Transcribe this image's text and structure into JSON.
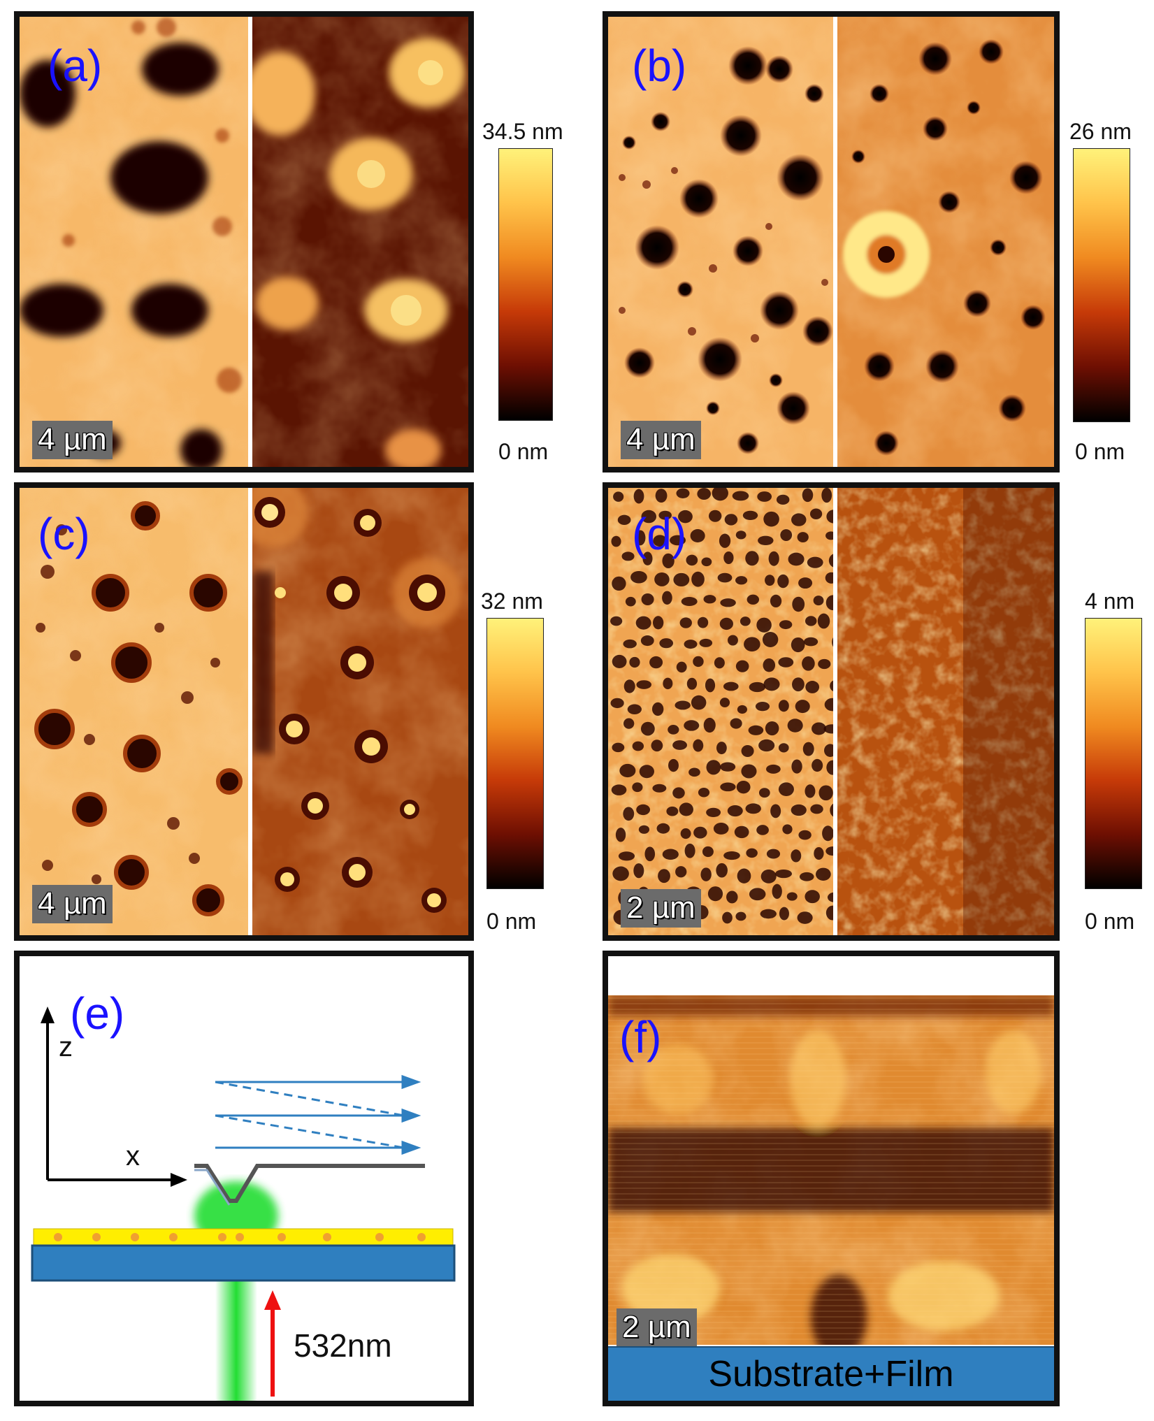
{
  "panels": [
    {
      "id": "a",
      "label": "(a)",
      "scale": "4 µm",
      "max": "34.5 nm",
      "min": "0 nm"
    },
    {
      "id": "b",
      "label": "(b)",
      "scale": "4 µm",
      "max": "26 nm",
      "min": "0 nm"
    },
    {
      "id": "c",
      "label": "(c)",
      "scale": "4 µm",
      "max": "32 nm",
      "min": "0 nm"
    },
    {
      "id": "d",
      "label": "(d)",
      "scale": "2 µm",
      "max": "4 nm",
      "min": "0 nm"
    }
  ],
  "panel_e": {
    "label": "(e)",
    "axis_z": "z",
    "axis_x": "x",
    "laser": "532nm"
  },
  "panel_f": {
    "label": "(f)",
    "scale": "2 µm",
    "substrate": "Substrate+Film"
  },
  "colors": {
    "label": "#1a12ff",
    "colormap_top": "#fff27a",
    "colormap_bottom": "#000000",
    "substrate": "#2f7fbf",
    "film": "#ffee00",
    "laser": "#22dd33"
  }
}
